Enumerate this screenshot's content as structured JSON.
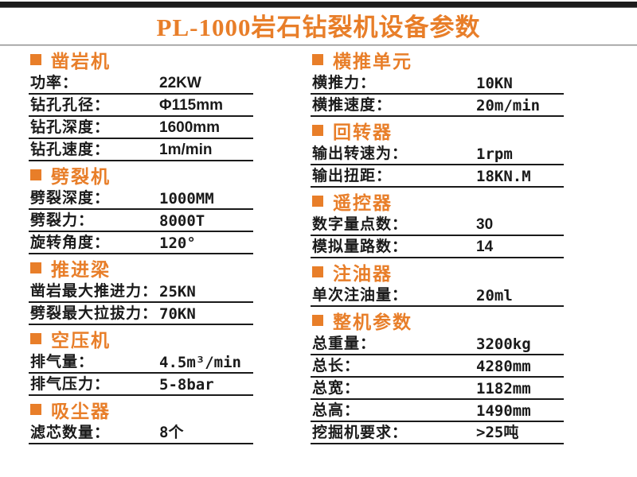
{
  "title": "PL-1000岩石钻裂机设备参数",
  "accent_color": "#E87E29",
  "top_bar_color": "#1C1C1C",
  "rule_color": "#1A1A1A",
  "columns": {
    "left": [
      {
        "title": "凿岩机",
        "rows": [
          {
            "label": "功率：",
            "value": "22KW"
          },
          {
            "label": "钻孔孔径：",
            "value": "Φ115mm"
          },
          {
            "label": "钻孔深度：",
            "value": "1600mm"
          },
          {
            "label": "钻孔速度：",
            "value": "1m/min"
          }
        ]
      },
      {
        "title": "劈裂机",
        "rows": [
          {
            "label": "劈裂深度：",
            "value": "1000MM"
          },
          {
            "label": "劈裂力：",
            "value": "8000T"
          },
          {
            "label": "旋转角度：",
            "value": "120°"
          }
        ]
      },
      {
        "title": "推进梁",
        "rows": [
          {
            "label": "凿岩最大推进力：",
            "value": "25KN"
          },
          {
            "label": "劈裂最大拉拔力：",
            "value": "70KN"
          }
        ]
      },
      {
        "title": "空压机",
        "rows": [
          {
            "label": "排气量：",
            "value": "4.5m³/min"
          },
          {
            "label": "排气压力：",
            "value": "5-8bar"
          }
        ]
      },
      {
        "title": "吸尘器",
        "rows": [
          {
            "label": "滤芯数量：",
            "value": "8个"
          }
        ]
      }
    ],
    "right": [
      {
        "title": "横推单元",
        "rows": [
          {
            "label": "横推力：",
            "value": "10KN"
          },
          {
            "label": "横推速度：",
            "value": "20m/min"
          }
        ]
      },
      {
        "title": "回转器",
        "rows": [
          {
            "label": "输出转速为：",
            "value": "1rpm"
          },
          {
            "label": "输出扭距：",
            "value": "18KN.M"
          }
        ]
      },
      {
        "title": "遥控器",
        "rows": [
          {
            "label": "数字量点数：",
            "value": "30"
          },
          {
            "label": "模拟量路数：",
            "value": "14"
          }
        ]
      },
      {
        "title": "注油器",
        "rows": [
          {
            "label": "单次注油量：",
            "value": "20ml"
          }
        ]
      },
      {
        "title": "整机参数",
        "rows": [
          {
            "label": "总重量：",
            "value": "3200kg"
          },
          {
            "label": "总长：",
            "value": "4280mm"
          },
          {
            "label": "总宽：",
            "value": "1182mm"
          },
          {
            "label": "总高：",
            "value": "1490mm"
          },
          {
            "label": "挖掘机要求：",
            "value": ">25吨"
          }
        ]
      }
    ]
  }
}
